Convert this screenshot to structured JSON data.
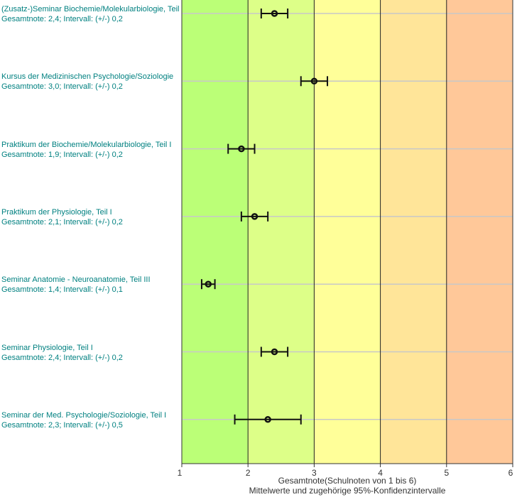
{
  "chart_data": {
    "type": "scatter",
    "orientation": "horizontal",
    "xlabel": "Gesamtnote(Schulnoten von 1 bis 6)",
    "subtitle": "Mittelwerte und zugehörige 95%-Konfidenzintervalle",
    "xlim": [
      1,
      6
    ],
    "xticks": [
      "1",
      "2",
      "3",
      "4",
      "5",
      "6"
    ],
    "bands": [
      {
        "from": 1,
        "to": 2,
        "color": "#bbff77"
      },
      {
        "from": 2,
        "to": 3,
        "color": "#ddff88"
      },
      {
        "from": 3,
        "to": 4,
        "color": "#ffff99"
      },
      {
        "from": 4,
        "to": 5,
        "color": "#ffe599"
      },
      {
        "from": 5,
        "to": 6,
        "color": "#ffc899"
      }
    ],
    "label_color": "#008080",
    "items": [
      {
        "name": "(Zusatz-)Seminar Biochemie/Molekularbiologie, Teil I",
        "stat": "Gesamtnote: 2,4;  Intervall: (+/-) 0,2",
        "mean": 2.4,
        "ci": 0.2
      },
      {
        "name": "Kursus der Medizinischen Psychologie/Soziologie",
        "stat": "Gesamtnote: 3,0;  Intervall: (+/-) 0,2",
        "mean": 3.0,
        "ci": 0.2
      },
      {
        "name": "Praktikum der Biochemie/Molekularbiologie, Teil I",
        "stat": "Gesamtnote: 1,9;  Intervall: (+/-) 0,2",
        "mean": 1.9,
        "ci": 0.2
      },
      {
        "name": "Praktikum der Physiologie, Teil I",
        "stat": "Gesamtnote: 2,1;  Intervall: (+/-) 0,2",
        "mean": 2.1,
        "ci": 0.2
      },
      {
        "name": "Seminar Anatomie - Neuroanatomie, Teil III",
        "stat": "Gesamtnote: 1,4;  Intervall: (+/-) 0,1",
        "mean": 1.4,
        "ci": 0.1
      },
      {
        "name": "Seminar Physiologie, Teil I",
        "stat": "Gesamtnote: 2,4;  Intervall: (+/-) 0,2",
        "mean": 2.4,
        "ci": 0.2
      },
      {
        "name": "Seminar der Med. Psychologie/Soziologie, Teil I",
        "stat": "Gesamtnote: 2,3;  Intervall: (+/-) 0,5",
        "mean": 2.3,
        "ci": 0.5
      }
    ]
  }
}
